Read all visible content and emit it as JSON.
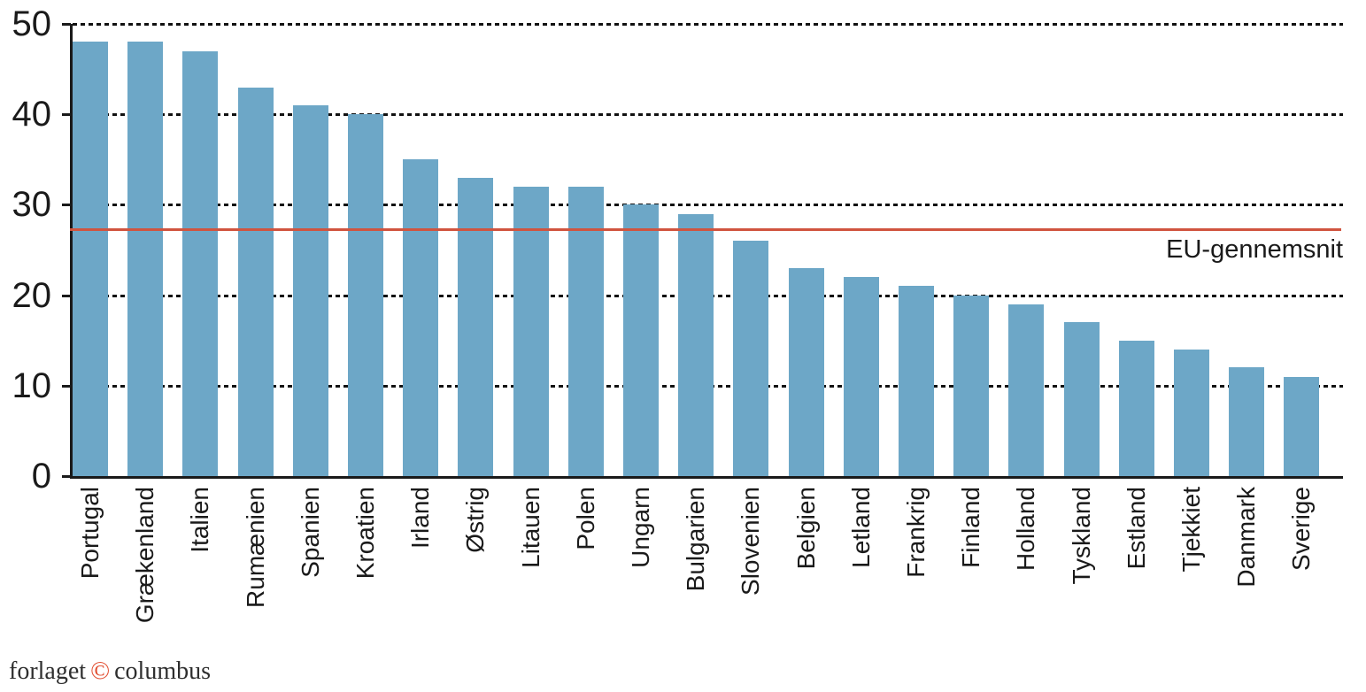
{
  "chart_data": {
    "type": "bar",
    "categories": [
      "Portugal",
      "Grækenland",
      "Italien",
      "Rumænien",
      "Spanien",
      "Kroatien",
      "Irland",
      "Østrig",
      "Litauen",
      "Polen",
      "Ungarn",
      "Bulgarien",
      "Slovenien",
      "Belgien",
      "Letland",
      "Frankrig",
      "Finland",
      "Holland",
      "Tyskland",
      "Estland",
      "Tjekkiet",
      "Danmark",
      "Sverige"
    ],
    "values": [
      48,
      48,
      47,
      43,
      41,
      40,
      35,
      33,
      32,
      32,
      30,
      29,
      26,
      23,
      22,
      21,
      20,
      19,
      17,
      15,
      14,
      12,
      11
    ],
    "title": "",
    "xlabel": "",
    "ylabel": "",
    "ylim": [
      0,
      50
    ],
    "yticks": [
      0,
      10,
      20,
      30,
      40,
      50
    ],
    "grid": "dotted-horizontal-behind-bars",
    "legend_position": "none",
    "bar_color": "#6da7c7",
    "axis_color": "#1a1a1a",
    "reference_line": {
      "value": 27.3,
      "label": "EU-gennemsnit",
      "color": "#d0543f"
    }
  },
  "footer": {
    "prefix": "forlaget",
    "copyright_symbol": "©",
    "suffix": "columbus",
    "copyright_color": "#e14b2d"
  }
}
